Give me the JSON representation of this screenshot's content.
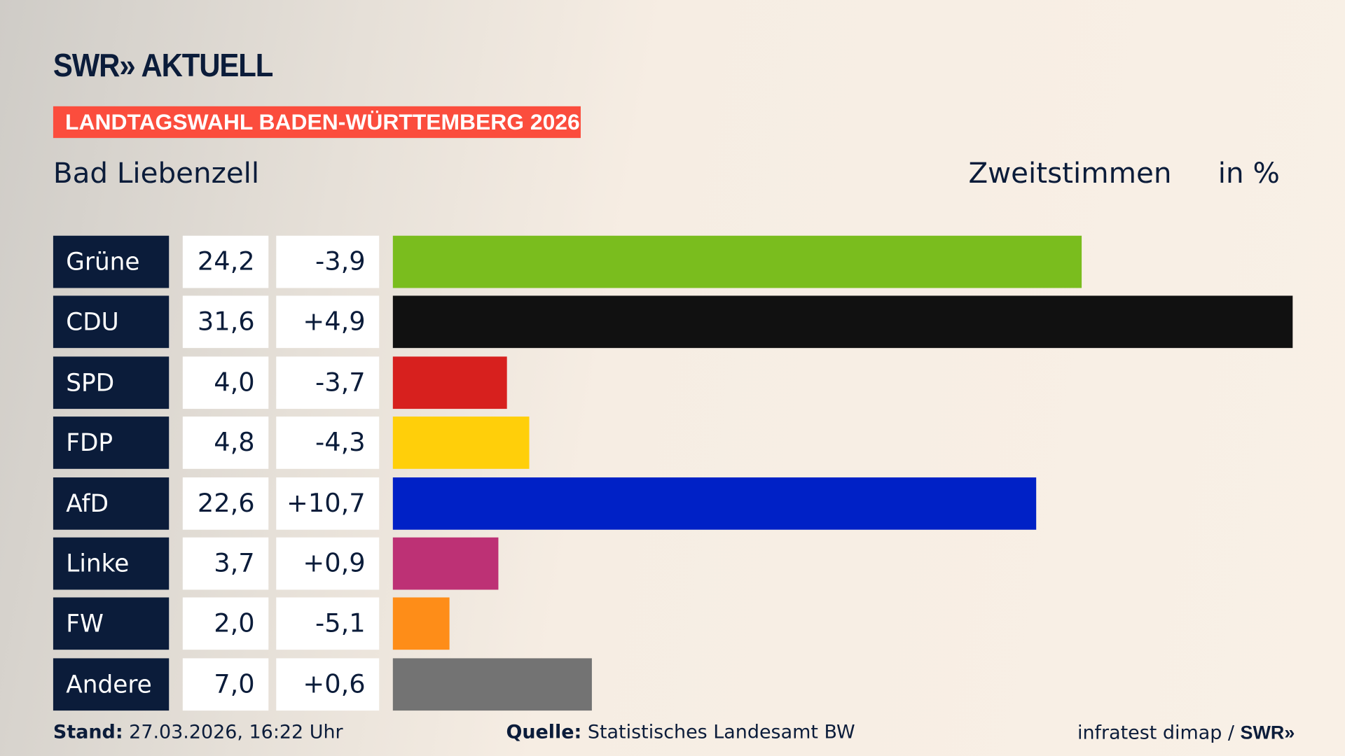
{
  "header": {
    "logo": "SWR» AKTUELL",
    "banner": "LANDTAGSWAHL BADEN-WÜRTTEMBERG 2026",
    "place": "Bad Liebenzell",
    "measure": "Zweitstimmen",
    "unit": "in %"
  },
  "chart_data": {
    "type": "bar",
    "orientation": "horizontal",
    "categories": [
      "Grüne",
      "CDU",
      "SPD",
      "FDP",
      "AfD",
      "Linke",
      "FW",
      "Andere"
    ],
    "values": [
      24.2,
      31.6,
      4.0,
      4.8,
      22.6,
      3.7,
      2.0,
      7.0
    ],
    "value_labels": [
      "24,2",
      "31,6",
      "4,0",
      "4,8",
      "22,6",
      "3,7",
      "2,0",
      "7,0"
    ],
    "diff_labels": [
      "-3,9",
      "+4,9",
      "-3,7",
      "-4,3",
      "+10,7",
      "+0,9",
      "-5,1",
      "+0,6"
    ],
    "colors": [
      "#7abd1e",
      "#111111",
      "#d7201e",
      "#ffcf0a",
      "#0021c6",
      "#bd3175",
      "#fe8d18",
      "#737373"
    ],
    "xlim": [
      0,
      31.6
    ]
  },
  "footer": {
    "stand_label": "Stand:",
    "stand": " 27.03.2026, 16:22 Uhr",
    "source_label": "Quelle:",
    "source": " Statistisches Landesamt BW",
    "credit": "infratest dimap / ",
    "credit_logo": "SWR»"
  }
}
